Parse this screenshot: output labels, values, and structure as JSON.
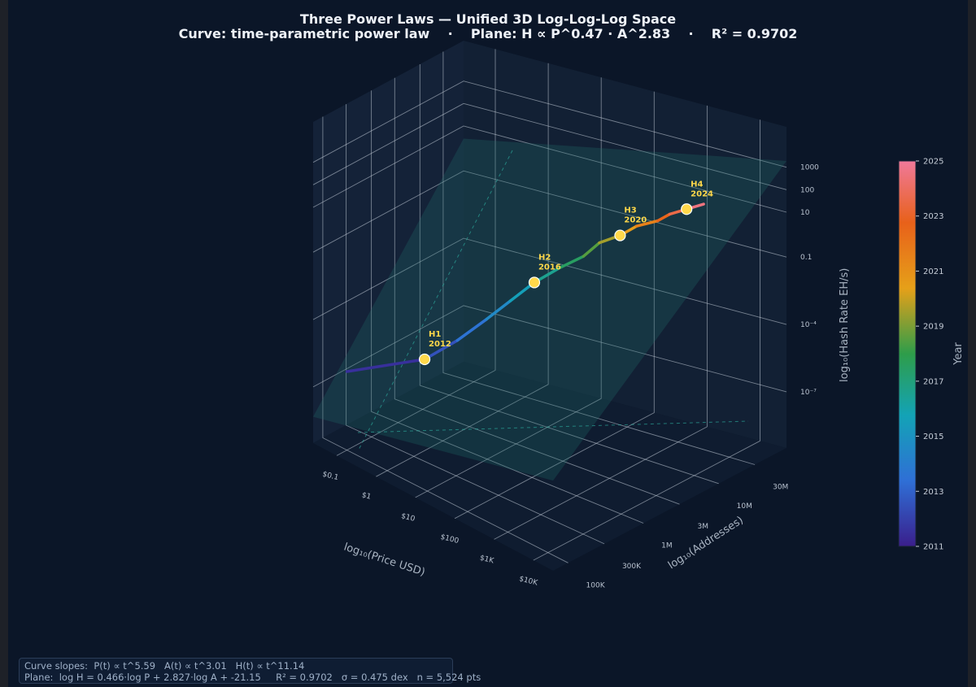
{
  "title_line1": "Three Power Laws — Unified 3D Log-Log-Log Space",
  "title_line2": "Curve: time-parametric power law    ·    Plane: H ∝ P^0.47 · A^2.83    ·    R² = 0.9702",
  "stats": {
    "line1": "Curve slopes:  P(t) ∝ t^5.59   A(t) ∝ t^3.01   H(t) ∝ t^11.14",
    "line2": "Plane:  log H = 0.466·log P + 2.827·log A + -21.15     R² = 0.9702   σ = 0.475 dex   n = 5,524 pts"
  },
  "chart_data": {
    "type": "scatter",
    "projection": "3d",
    "axes": {
      "x": {
        "label": "log₁₀(Price  USD)",
        "ticks": [
          "$0.1",
          "$1",
          "$10",
          "$100",
          "$1K",
          "$10K"
        ],
        "tick_values": [
          -1,
          0,
          1,
          2,
          3,
          4
        ]
      },
      "y": {
        "label": "log₁₀(Addresses)",
        "ticks": [
          "100K",
          "300K",
          "1M",
          "3M",
          "10M",
          "30M"
        ],
        "tick_values": [
          5,
          5.48,
          6,
          6.48,
          7,
          7.48
        ]
      },
      "z": {
        "label": "log₁₀(Hash Rate EH/s)",
        "ticks": [
          "1000",
          "100",
          "10",
          "0.1",
          "10⁻⁴",
          "10⁻⁷"
        ],
        "tick_values": [
          3,
          2,
          1,
          -1,
          -4,
          -7
        ]
      }
    },
    "colorbar": {
      "label": "Year",
      "ticks": [
        "2025",
        "2023",
        "2021",
        "2019",
        "2017",
        "2015",
        "2013",
        "2011"
      ],
      "range": [
        2011,
        2025
      ],
      "colormap": [
        "#3a1f8c",
        "#2f6fd6",
        "#13a3b6",
        "#2e9d4a",
        "#e6a019",
        "#e8611a",
        "#f0799a"
      ]
    },
    "series": [
      {
        "year": [
          2011,
          2012,
          2013,
          2014,
          2015,
          2016,
          2017,
          2018,
          2019,
          2020,
          2021,
          2022,
          2023,
          2024,
          2025
        ],
        "log_price": [
          -1.0,
          0.5,
          1.0,
          1.4,
          1.8,
          2.2,
          2.6,
          3.0,
          3.2,
          3.5,
          3.7,
          4.0,
          4.1,
          4.3,
          4.5
        ],
        "log_addresses": [
          5.0,
          5.3,
          5.5,
          5.7,
          5.8,
          5.9,
          6.0,
          6.1,
          6.2,
          6.3,
          6.4,
          6.5,
          6.6,
          6.7,
          6.8
        ],
        "log_hash": [
          -6.0,
          -4.5,
          -3.5,
          -2.5,
          -1.5,
          -0.5,
          0.3,
          1.0,
          1.6,
          2.0,
          2.4,
          2.7,
          2.9,
          3.1,
          3.3
        ]
      }
    ],
    "halvings": [
      {
        "label": "H1",
        "year": "2012"
      },
      {
        "label": "H2",
        "year": "2016"
      },
      {
        "label": "H3",
        "year": "2020"
      },
      {
        "label": "H4",
        "year": "2024"
      }
    ],
    "fit_plane": {
      "coef_logP": 0.466,
      "coef_logA": 2.827,
      "intercept": -21.15,
      "r2": 0.9702
    },
    "grid": true
  }
}
